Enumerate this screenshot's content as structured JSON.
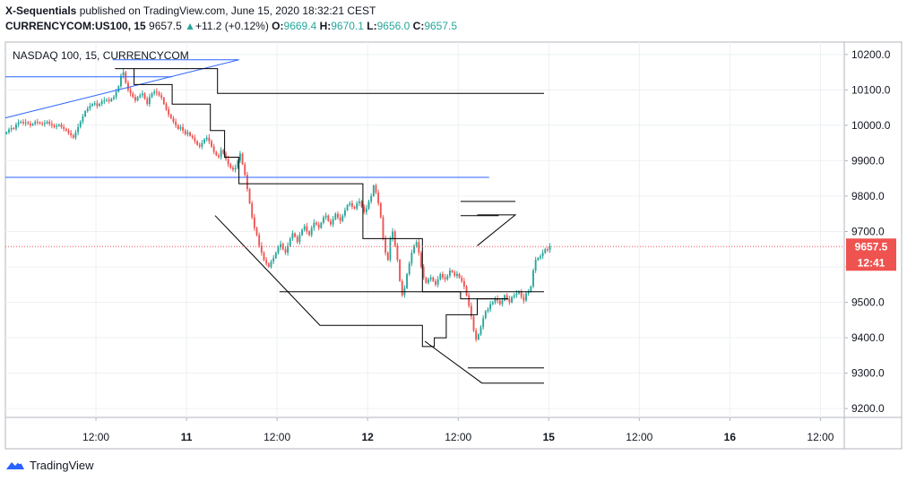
{
  "header": {
    "author": "X-Sequentials",
    "published_text": "published on TradingView.com, June 15, 2020 18:32:21 CEST",
    "symbol_interval": "CURRENCYCOM:US100, 15",
    "last": "9657.5",
    "change_arrow": "▲",
    "change": "+11.2 (+0.12%)",
    "o_label": "O:",
    "o_value": "9669.4",
    "h_label": "H:",
    "h_value": "9670.1",
    "l_label": "L:",
    "l_value": "9656.0",
    "c_label": "C:",
    "c_value": "9657.5"
  },
  "legend": {
    "title": "NASDAQ 100, 15, CURRENCYCOM"
  },
  "footer": {
    "brand": "TradingView",
    "logo_icon": "tradingview-logo-icon"
  },
  "colors": {
    "up": "#26a69a",
    "down": "#ef5350",
    "price_tag": "#ef5350",
    "trendline": "#2962ff",
    "level": "#000000"
  },
  "chart_data": {
    "type": "candlestick",
    "title": "NASDAQ 100, 15, CURRENCYCOM",
    "y_ticks": [
      "10200.0",
      "10100.0",
      "10000.0",
      "9900.0",
      "9800.0",
      "9700.0",
      "9600.0",
      "9500.0",
      "9400.0",
      "9300.0",
      "9200.0"
    ],
    "y_tick_values": [
      10200,
      10100,
      10000,
      9900,
      9800,
      9700,
      9600,
      9500,
      9400,
      9300,
      9200
    ],
    "ylim": [
      9175,
      10235
    ],
    "x_ticks": [
      "12:00",
      "11",
      "12:00",
      "12",
      "12:00",
      "15",
      "12:00",
      "16",
      "12:00"
    ],
    "x_tick_bars": [
      38,
      76,
      114,
      152,
      190,
      228,
      266,
      304,
      342
    ],
    "x_range_bars": [
      0,
      352
    ],
    "grid": true,
    "last_price": 9657.5,
    "price_label": "9657.5",
    "countdown_label": "12:41",
    "closes": [
      9980,
      9988,
      9992,
      9990,
      10002,
      10008,
      10010,
      10006,
      10008,
      10005,
      10000,
      10004,
      10010,
      10008,
      10005,
      10003,
      10006,
      10010,
      10004,
      10000,
      9995,
      9998,
      10002,
      9995,
      9990,
      9985,
      9978,
      9972,
      9965,
      9980,
      9995,
      10010,
      10025,
      10040,
      10048,
      10055,
      10060,
      10062,
      10055,
      10060,
      10068,
      10070,
      10072,
      10068,
      10075,
      10080,
      10095,
      10110,
      10140,
      10150,
      10120,
      10100,
      10090,
      10080,
      10070,
      10080,
      10085,
      10090,
      10075,
      10060,
      10080,
      10090,
      10095,
      10092,
      10085,
      10078,
      10060,
      10045,
      10030,
      10020,
      10010,
      10000,
      9990,
      9995,
      9985,
      9975,
      9980,
      9970,
      9965,
      9955,
      9945,
      9940,
      9950,
      9960,
      9965,
      9955,
      9940,
      9925,
      9915,
      9910,
      9930,
      9920,
      9905,
      9890,
      9880,
      9875,
      9880,
      9900,
      9920,
      9890,
      9860,
      9820,
      9780,
      9740,
      9710,
      9690,
      9660,
      9640,
      9620,
      9610,
      9600,
      9615,
      9625,
      9640,
      9655,
      9665,
      9650,
      9640,
      9660,
      9680,
      9695,
      9685,
      9670,
      9690,
      9705,
      9715,
      9700,
      9690,
      9710,
      9725,
      9720,
      9710,
      9725,
      9740,
      9745,
      9730,
      9720,
      9735,
      9750,
      9740,
      9730,
      9745,
      9760,
      9775,
      9780,
      9770,
      9765,
      9780,
      9785,
      9770,
      9755,
      9765,
      9785,
      9800,
      9830,
      9810,
      9780,
      9740,
      9680,
      9640,
      9620,
      9680,
      9700,
      9660,
      9620,
      9560,
      9520,
      9540,
      9580,
      9610,
      9640,
      9660,
      9670,
      9640,
      9600,
      9570,
      9555,
      9565,
      9570,
      9560,
      9550,
      9565,
      9580,
      9570,
      9565,
      9575,
      9590,
      9585,
      9575,
      9580,
      9570,
      9560,
      9545,
      9520,
      9490,
      9460,
      9420,
      9395,
      9410,
      9430,
      9455,
      9475,
      9480,
      9495,
      9500,
      9510,
      9505,
      9495,
      9505,
      9520,
      9510,
      9500,
      9515,
      9520,
      9525,
      9530,
      9515,
      9505,
      9525,
      9530,
      9545,
      9590,
      9620,
      9625,
      9630,
      9640,
      9650,
      9648,
      9657.5
    ],
    "blue_lines": [
      {
        "from": [
          0,
          10021
        ],
        "to": [
          98,
          10185
        ]
      },
      {
        "from": [
          0,
          10137
        ],
        "to": [
          70,
          10137
        ]
      },
      {
        "from": [
          45,
          10185
        ],
        "to": [
          98,
          10185
        ]
      },
      {
        "from": [
          0,
          9853
        ],
        "to": [
          203,
          9853
        ]
      }
    ],
    "black_polylines": [
      [
        [
          46,
          10160
        ],
        [
          89,
          10160
        ],
        [
          89,
          10090
        ],
        [
          226,
          10090
        ]
      ],
      [
        [
          54,
          10160
        ],
        [
          54,
          10115
        ],
        [
          70,
          10115
        ],
        [
          70,
          10060
        ],
        [
          86,
          10060
        ],
        [
          86,
          9985
        ],
        [
          92,
          9985
        ],
        [
          92,
          9910
        ],
        [
          98,
          9910
        ],
        [
          98,
          9835
        ],
        [
          150,
          9835
        ],
        [
          150,
          9680
        ],
        [
          175,
          9680
        ],
        [
          175,
          9530
        ],
        [
          191,
          9530
        ],
        [
          191,
          9510
        ],
        [
          211,
          9510
        ]
      ],
      [
        [
          115,
          9530
        ],
        [
          226,
          9530
        ]
      ],
      [
        [
          88,
          9745
        ],
        [
          132,
          9435
        ],
        [
          175,
          9435
        ],
        [
          175,
          9375
        ],
        [
          180,
          9375
        ],
        [
          180,
          9400
        ],
        [
          185,
          9400
        ],
        [
          185,
          9465
        ],
        [
          198,
          9465
        ],
        [
          198,
          9510
        ],
        [
          211,
          9510
        ]
      ],
      [
        [
          176,
          9390
        ],
        [
          200,
          9272
        ],
        [
          226,
          9272
        ]
      ],
      [
        [
          194,
          9315
        ],
        [
          226,
          9315
        ]
      ],
      [
        [
          198,
          9747
        ],
        [
          214,
          9747
        ],
        [
          198,
          9660
        ]
      ],
      [
        [
          191,
          9785
        ],
        [
          214,
          9785
        ]
      ],
      [
        [
          191,
          9745
        ],
        [
          207,
          9745
        ]
      ]
    ]
  }
}
